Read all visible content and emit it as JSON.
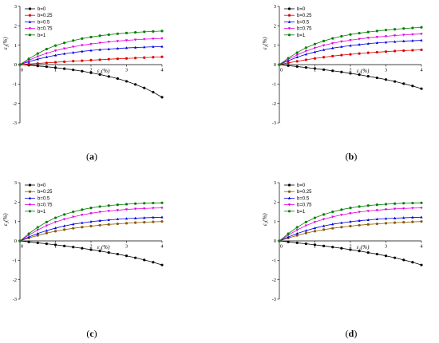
{
  "chart_data": [
    {
      "type": "line",
      "caption": "(a)",
      "xlabel": "ε₁(%)",
      "ylabel": "ε₂(%)",
      "xlim": [
        0,
        4
      ],
      "ylim": [
        -3,
        3
      ],
      "xticks": [
        "0",
        "1",
        "2",
        "3",
        "4"
      ],
      "yticks": [
        "3",
        "2",
        "1",
        "0",
        "-1",
        "-2",
        "-3"
      ],
      "legend_position": "top-left",
      "x": [
        0,
        0.25,
        0.5,
        0.75,
        1,
        1.25,
        1.5,
        1.75,
        2,
        2.25,
        2.5,
        2.75,
        3,
        3.25,
        3.5,
        3.75,
        4
      ],
      "series": [
        {
          "name": "b=0",
          "color": "#000000",
          "marker": "circle",
          "values": [
            0,
            -0.03,
            -0.07,
            -0.11,
            -0.16,
            -0.21,
            -0.27,
            -0.34,
            -0.42,
            -0.51,
            -0.61,
            -0.72,
            -0.86,
            -1.02,
            -1.2,
            -1.42,
            -1.68
          ]
        },
        {
          "name": "b=0.25",
          "color": "#e00000",
          "marker": "circle",
          "values": [
            0,
            0.03,
            0.06,
            0.09,
            0.12,
            0.15,
            0.18,
            0.2,
            0.23,
            0.25,
            0.28,
            0.3,
            0.32,
            0.34,
            0.36,
            0.38,
            0.4
          ]
        },
        {
          "name": "b=0.5",
          "color": "#0000e0",
          "marker": "triangle-up",
          "values": [
            0,
            0.15,
            0.28,
            0.39,
            0.48,
            0.56,
            0.62,
            0.68,
            0.73,
            0.77,
            0.8,
            0.83,
            0.86,
            0.88,
            0.9,
            0.92,
            0.93
          ]
        },
        {
          "name": "b=0.75",
          "color": "#e000e0",
          "marker": "triangle-down",
          "values": [
            0,
            0.22,
            0.42,
            0.58,
            0.72,
            0.83,
            0.92,
            1.0,
            1.06,
            1.12,
            1.17,
            1.21,
            1.25,
            1.28,
            1.31,
            1.33,
            1.35
          ]
        },
        {
          "name": "b=1",
          "color": "#008000",
          "marker": "circle",
          "values": [
            0,
            0.3,
            0.57,
            0.8,
            0.98,
            1.12,
            1.24,
            1.34,
            1.42,
            1.49,
            1.54,
            1.59,
            1.63,
            1.66,
            1.69,
            1.71,
            1.73
          ]
        }
      ]
    },
    {
      "type": "line",
      "caption": "(b)",
      "xlabel": "ε₁(%)",
      "ylabel": "ε₂(%)",
      "xlim": [
        0,
        4
      ],
      "ylim": [
        -3,
        3
      ],
      "xticks": [
        "0",
        "1",
        "2",
        "3",
        "4"
      ],
      "yticks": [
        "3",
        "2",
        "1",
        "0",
        "-1",
        "-2",
        "-3"
      ],
      "legend_position": "top-left",
      "x": [
        0,
        0.25,
        0.5,
        0.75,
        1,
        1.25,
        1.5,
        1.75,
        2,
        2.25,
        2.5,
        2.75,
        3,
        3.25,
        3.5,
        3.75,
        4
      ],
      "series": [
        {
          "name": "b=0",
          "color": "#000000",
          "marker": "circle",
          "values": [
            0,
            -0.05,
            -0.1,
            -0.15,
            -0.2,
            -0.26,
            -0.32,
            -0.38,
            -0.45,
            -0.52,
            -0.6,
            -0.68,
            -0.77,
            -0.87,
            -0.98,
            -1.1,
            -1.24
          ]
        },
        {
          "name": "b=0.25",
          "color": "#e00000",
          "marker": "circle",
          "values": [
            0,
            0.09,
            0.17,
            0.25,
            0.32,
            0.38,
            0.44,
            0.49,
            0.53,
            0.57,
            0.61,
            0.64,
            0.67,
            0.7,
            0.72,
            0.74,
            0.76
          ]
        },
        {
          "name": "b=0.5",
          "color": "#0000e0",
          "marker": "triangle-up",
          "values": [
            0,
            0.2,
            0.38,
            0.53,
            0.65,
            0.76,
            0.85,
            0.92,
            0.98,
            1.03,
            1.08,
            1.12,
            1.15,
            1.18,
            1.21,
            1.23,
            1.25
          ]
        },
        {
          "name": "b=0.75",
          "color": "#e000e0",
          "marker": "triangle-down",
          "values": [
            0,
            0.27,
            0.5,
            0.7,
            0.86,
            0.99,
            1.1,
            1.19,
            1.26,
            1.32,
            1.38,
            1.42,
            1.46,
            1.5,
            1.53,
            1.56,
            1.58
          ]
        },
        {
          "name": "b=1",
          "color": "#008000",
          "marker": "circle",
          "values": [
            0,
            0.33,
            0.62,
            0.87,
            1.06,
            1.22,
            1.35,
            1.46,
            1.55,
            1.62,
            1.68,
            1.73,
            1.78,
            1.82,
            1.86,
            1.89,
            1.92
          ]
        }
      ]
    },
    {
      "type": "line",
      "caption": "(c)",
      "xlabel": "ε₁(%)",
      "ylabel": "ε₂(%)",
      "xlim": [
        0,
        4
      ],
      "ylim": [
        -3,
        3
      ],
      "xticks": [
        "0",
        "1",
        "2",
        "3",
        "4"
      ],
      "yticks": [
        "3",
        "2",
        "1",
        "0",
        "-1",
        "-2",
        "-3"
      ],
      "legend_position": "top-left",
      "x": [
        0,
        0.25,
        0.5,
        0.75,
        1,
        1.25,
        1.5,
        1.75,
        2,
        2.25,
        2.5,
        2.75,
        3,
        3.25,
        3.5,
        3.75,
        4
      ],
      "series": [
        {
          "name": "b=0",
          "color": "#000000",
          "marker": "circle",
          "values": [
            0,
            -0.05,
            -0.1,
            -0.15,
            -0.2,
            -0.26,
            -0.32,
            -0.38,
            -0.45,
            -0.52,
            -0.6,
            -0.68,
            -0.77,
            -0.87,
            -0.98,
            -1.1,
            -1.24
          ]
        },
        {
          "name": "b=0.25",
          "color": "#8b5a00",
          "marker": "circle",
          "values": [
            0,
            0.15,
            0.28,
            0.4,
            0.5,
            0.58,
            0.65,
            0.71,
            0.76,
            0.81,
            0.85,
            0.88,
            0.91,
            0.94,
            0.96,
            0.98,
            1.0
          ]
        },
        {
          "name": "b=0.5",
          "color": "#0000e0",
          "marker": "triangle-up",
          "values": [
            0,
            0.2,
            0.38,
            0.53,
            0.66,
            0.77,
            0.86,
            0.93,
            0.99,
            1.04,
            1.08,
            1.12,
            1.15,
            1.17,
            1.19,
            1.21,
            1.22
          ]
        },
        {
          "name": "b=0.75",
          "color": "#e000e0",
          "marker": "triangle-down",
          "values": [
            0,
            0.3,
            0.56,
            0.79,
            0.97,
            1.12,
            1.24,
            1.34,
            1.42,
            1.49,
            1.54,
            1.58,
            1.62,
            1.65,
            1.67,
            1.69,
            1.7
          ]
        },
        {
          "name": "b=1",
          "color": "#008000",
          "marker": "circle",
          "values": [
            0,
            0.37,
            0.7,
            0.97,
            1.19,
            1.36,
            1.5,
            1.61,
            1.7,
            1.77,
            1.82,
            1.86,
            1.89,
            1.92,
            1.94,
            1.95,
            1.96
          ]
        }
      ]
    },
    {
      "type": "line",
      "caption": "(d)",
      "xlabel": "ε₁(%)",
      "ylabel": "ε₂(%)",
      "xlim": [
        0,
        4
      ],
      "ylim": [
        -3,
        3
      ],
      "xticks": [
        "0",
        "1",
        "2",
        "3",
        "4"
      ],
      "yticks": [
        "3",
        "2",
        "1",
        "0",
        "-1",
        "-2",
        "-3"
      ],
      "legend_position": "top-left",
      "x": [
        0,
        0.25,
        0.5,
        0.75,
        1,
        1.25,
        1.5,
        1.75,
        2,
        2.25,
        2.5,
        2.75,
        3,
        3.25,
        3.5,
        3.75,
        4
      ],
      "series": [
        {
          "name": "b=0",
          "color": "#000000",
          "marker": "circle",
          "values": [
            0,
            -0.05,
            -0.1,
            -0.15,
            -0.2,
            -0.26,
            -0.32,
            -0.38,
            -0.45,
            -0.52,
            -0.6,
            -0.68,
            -0.77,
            -0.87,
            -0.98,
            -1.1,
            -1.24
          ]
        },
        {
          "name": "b=0.25",
          "color": "#8b5a00",
          "marker": "circle",
          "values": [
            0,
            0.15,
            0.28,
            0.4,
            0.5,
            0.58,
            0.65,
            0.71,
            0.76,
            0.81,
            0.85,
            0.88,
            0.91,
            0.94,
            0.96,
            0.98,
            1.0
          ]
        },
        {
          "name": "b=0.5",
          "color": "#0000e0",
          "marker": "triangle-up",
          "values": [
            0,
            0.2,
            0.38,
            0.53,
            0.66,
            0.77,
            0.86,
            0.93,
            0.99,
            1.04,
            1.08,
            1.12,
            1.15,
            1.17,
            1.19,
            1.21,
            1.22
          ]
        },
        {
          "name": "b=0.75",
          "color": "#e000e0",
          "marker": "triangle-down",
          "values": [
            0,
            0.3,
            0.56,
            0.79,
            0.97,
            1.12,
            1.24,
            1.34,
            1.42,
            1.49,
            1.54,
            1.58,
            1.62,
            1.65,
            1.67,
            1.69,
            1.7
          ]
        },
        {
          "name": "b=1",
          "color": "#008000",
          "marker": "circle",
          "values": [
            0,
            0.37,
            0.7,
            0.97,
            1.19,
            1.36,
            1.5,
            1.61,
            1.7,
            1.77,
            1.82,
            1.86,
            1.89,
            1.92,
            1.94,
            1.95,
            1.96
          ]
        }
      ]
    }
  ]
}
